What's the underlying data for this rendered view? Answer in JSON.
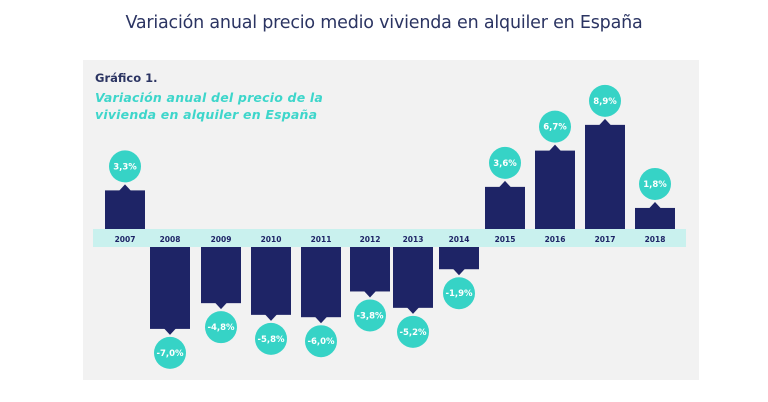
{
  "page": {
    "title": "Variación anual precio medio vivienda en alquiler en España"
  },
  "chart_header": {
    "label": "Gráfico 1.",
    "subtitle_line1": "Variación anual del precio de la",
    "subtitle_line2": "vivienda en alquiler en España"
  },
  "colors": {
    "bar": "#1e2466",
    "bubble": "#36d3c6",
    "axis_band": "#c9f1ee",
    "panel": "#f2f2f2",
    "title": "#2b3462",
    "subtitle": "#3ed6cb"
  },
  "chart_data": {
    "type": "bar",
    "title": "Variación anual del precio de la vivienda en alquiler en España",
    "categories": [
      "2007",
      "2008",
      "2009",
      "2010",
      "2011",
      "2012",
      "2013",
      "2014",
      "2015",
      "2016",
      "2017",
      "2018"
    ],
    "values": [
      3.3,
      -7.0,
      -4.8,
      -5.8,
      -6.0,
      -3.8,
      -5.2,
      -1.9,
      3.6,
      6.7,
      8.9,
      1.8
    ],
    "data_labels": [
      "3,3%",
      "-7,0%",
      "-4,8%",
      "-5,8%",
      "-6,0%",
      "-3,8%",
      "-5,2%",
      "-1,9%",
      "3,6%",
      "6,7%",
      "8,9%",
      "1,8%"
    ],
    "xlabel": "",
    "ylabel": "",
    "grid": false,
    "legend": "none"
  }
}
